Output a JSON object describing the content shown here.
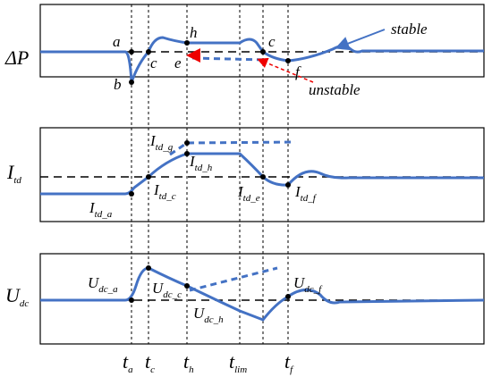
{
  "panel1": {
    "ylabel": "ΔP",
    "points": [
      "a",
      "b",
      "c",
      "e",
      "h",
      "c",
      "f"
    ],
    "stable": "stable",
    "unstable": "unstable"
  },
  "panel2": {
    "ylabel": {
      "main": "I",
      "sub": "td"
    },
    "labels": [
      {
        "main": "I",
        "sub": "td_a"
      },
      {
        "main": "I",
        "sub": "td_c"
      },
      {
        "main": "I",
        "sub": "td_g"
      },
      {
        "main": "I",
        "sub": "td_h"
      },
      {
        "main": "I",
        "sub": "td_e"
      },
      {
        "main": "I",
        "sub": "td_f"
      }
    ]
  },
  "panel3": {
    "ylabel": {
      "main": "U",
      "sub": "dc"
    },
    "labels": [
      {
        "main": "U",
        "sub": "dc_a"
      },
      {
        "main": "U",
        "sub": "dc_c"
      },
      {
        "main": "U",
        "sub": "dc_h"
      },
      {
        "main": "U",
        "sub": "dc_f"
      }
    ]
  },
  "time_axis": [
    {
      "main": "t",
      "sub": "a"
    },
    {
      "main": "t",
      "sub": "c"
    },
    {
      "main": "t",
      "sub": "h"
    },
    {
      "main": "t",
      "sub": "lim"
    },
    {
      "main": "t",
      "sub": "f"
    }
  ]
}
